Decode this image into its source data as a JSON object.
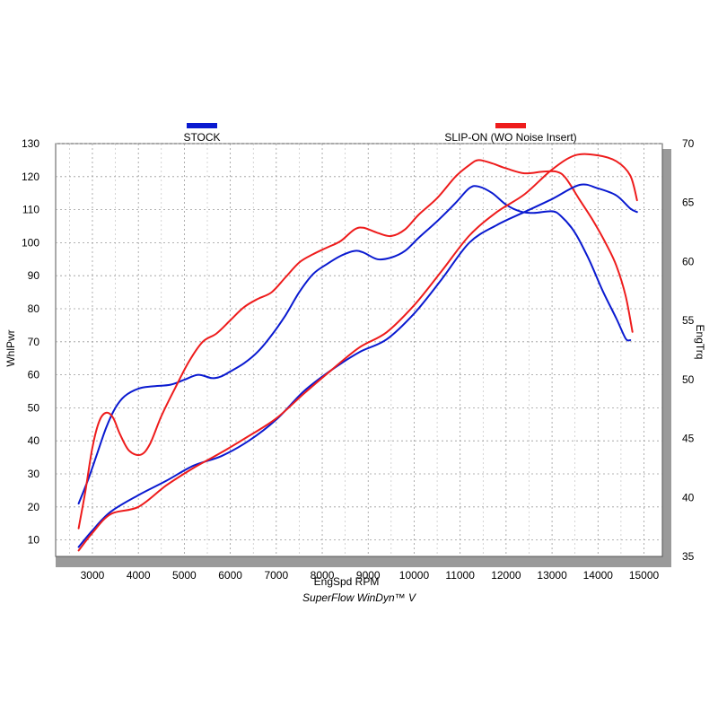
{
  "chart_data": {
    "type": "line",
    "footer": "SuperFlow WinDyn™ V",
    "xlabel": "EngSpd  RPM",
    "ylabel_left": "WhlPwr",
    "ylabel_right": "EngTrq",
    "xlim": [
      2200,
      15400
    ],
    "ylim_left": [
      5,
      130
    ],
    "ylim_right": [
      35,
      70
    ],
    "x_ticks": [
      "3000",
      "4000",
      "5000",
      "6000",
      "7000",
      "8000",
      "9000",
      "10000",
      "11000",
      "12000",
      "13000",
      "14000",
      "15000"
    ],
    "y_left_ticks": [
      "10",
      "20",
      "30",
      "40",
      "50",
      "60",
      "70",
      "80",
      "90",
      "100",
      "110",
      "120",
      "130"
    ],
    "y_right_ticks": [
      "35",
      "40",
      "45",
      "50",
      "55",
      "60",
      "65",
      "70"
    ],
    "grid": true,
    "legend": [
      {
        "name": "STOCK",
        "color": "#0a1ad0"
      },
      {
        "name": "SLIP-ON (WO Noise Insert)",
        "color": "#ee1c1c"
      }
    ],
    "series": [
      {
        "name": "STOCK",
        "measure": "WhlPwr",
        "axis": "left",
        "color": "#0a1ad0",
        "points": [
          [
            2700,
            21
          ],
          [
            2900,
            28
          ],
          [
            3100,
            36
          ],
          [
            3300,
            44
          ],
          [
            3500,
            50
          ],
          [
            3700,
            53.5
          ],
          [
            4000,
            55.8
          ],
          [
            4300,
            56.5
          ],
          [
            4700,
            57
          ],
          [
            5000,
            58.5
          ],
          [
            5300,
            60
          ],
          [
            5600,
            59
          ],
          [
            5800,
            59.5
          ],
          [
            6000,
            61
          ],
          [
            6300,
            63.5
          ],
          [
            6600,
            67
          ],
          [
            6900,
            72
          ],
          [
            7200,
            78
          ],
          [
            7500,
            85
          ],
          [
            7800,
            90.5
          ],
          [
            8100,
            93.5
          ],
          [
            8400,
            96
          ],
          [
            8700,
            97.5
          ],
          [
            8900,
            97
          ],
          [
            9200,
            95
          ],
          [
            9500,
            95.5
          ],
          [
            9800,
            97.5
          ],
          [
            10100,
            101.5
          ],
          [
            10500,
            106.5
          ],
          [
            10900,
            112
          ],
          [
            11200,
            116.5
          ],
          [
            11400,
            117
          ],
          [
            11700,
            115
          ],
          [
            12000,
            111.5
          ],
          [
            12300,
            109.5
          ],
          [
            12600,
            109
          ],
          [
            13000,
            109.5
          ],
          [
            13200,
            108
          ],
          [
            13500,
            103
          ],
          [
            13800,
            95
          ],
          [
            14100,
            85.5
          ],
          [
            14400,
            77
          ],
          [
            14600,
            71
          ],
          [
            14700,
            70.5
          ]
        ]
      },
      {
        "name": "SLIP-ON (WO Noise Insert)",
        "measure": "WhlPwr",
        "axis": "left",
        "color": "#ee1c1c",
        "points": [
          [
            2700,
            13.5
          ],
          [
            2850,
            25
          ],
          [
            3000,
            38
          ],
          [
            3150,
            46
          ],
          [
            3300,
            48.5
          ],
          [
            3450,
            47
          ],
          [
            3600,
            42
          ],
          [
            3800,
            37
          ],
          [
            4050,
            35.8
          ],
          [
            4250,
            39
          ],
          [
            4500,
            47.5
          ],
          [
            4800,
            56
          ],
          [
            5100,
            64
          ],
          [
            5400,
            70
          ],
          [
            5700,
            72.5
          ],
          [
            6000,
            76.5
          ],
          [
            6300,
            80.5
          ],
          [
            6600,
            83
          ],
          [
            6900,
            85
          ],
          [
            7200,
            89.5
          ],
          [
            7500,
            94
          ],
          [
            7800,
            96.5
          ],
          [
            8100,
            98.5
          ],
          [
            8400,
            100.5
          ],
          [
            8700,
            104
          ],
          [
            8900,
            104.5
          ],
          [
            9200,
            103
          ],
          [
            9500,
            102
          ],
          [
            9800,
            104
          ],
          [
            10100,
            108.5
          ],
          [
            10500,
            113.5
          ],
          [
            10900,
            120
          ],
          [
            11200,
            123.5
          ],
          [
            11400,
            125
          ],
          [
            11700,
            124
          ],
          [
            12000,
            122.5
          ],
          [
            12400,
            121
          ],
          [
            12800,
            121.5
          ],
          [
            13100,
            121.5
          ],
          [
            13300,
            119.5
          ],
          [
            13600,
            113
          ],
          [
            13900,
            106.5
          ],
          [
            14200,
            99
          ],
          [
            14400,
            93
          ],
          [
            14600,
            84
          ],
          [
            14750,
            73
          ]
        ]
      },
      {
        "name": "STOCK",
        "measure": "EngTrq",
        "axis": "right",
        "color": "#0a1ad0",
        "points": [
          [
            2700,
            35.8
          ],
          [
            3000,
            37.2
          ],
          [
            3400,
            38.8
          ],
          [
            4000,
            40.2
          ],
          [
            4600,
            41.4
          ],
          [
            5200,
            42.7
          ],
          [
            5800,
            43.5
          ],
          [
            6400,
            44.8
          ],
          [
            7000,
            46.6
          ],
          [
            7600,
            49
          ],
          [
            8200,
            50.8
          ],
          [
            8800,
            52.3
          ],
          [
            9400,
            53.4
          ],
          [
            10000,
            55.6
          ],
          [
            10600,
            58.5
          ],
          [
            11200,
            61.6
          ],
          [
            11800,
            63.1
          ],
          [
            12400,
            64.2
          ],
          [
            13000,
            65.3
          ],
          [
            13600,
            66.5
          ],
          [
            14000,
            66.2
          ],
          [
            14400,
            65.6
          ],
          [
            14700,
            64.5
          ],
          [
            14850,
            64.2
          ]
        ]
      },
      {
        "name": "SLIP-ON (WO Noise Insert)",
        "measure": "EngTrq",
        "axis": "right",
        "color": "#ee1c1c",
        "points": [
          [
            2700,
            35.5
          ],
          [
            3000,
            37
          ],
          [
            3400,
            38.6
          ],
          [
            4000,
            39.2
          ],
          [
            4600,
            41
          ],
          [
            5200,
            42.5
          ],
          [
            5800,
            43.8
          ],
          [
            6400,
            45.2
          ],
          [
            7000,
            46.7
          ],
          [
            7600,
            48.8
          ],
          [
            8200,
            50.8
          ],
          [
            8800,
            52.7
          ],
          [
            9400,
            54
          ],
          [
            10000,
            56.3
          ],
          [
            10600,
            59.2
          ],
          [
            11200,
            62.2
          ],
          [
            11800,
            64.2
          ],
          [
            12400,
            65.7
          ],
          [
            13000,
            67.8
          ],
          [
            13500,
            69
          ],
          [
            14000,
            69
          ],
          [
            14400,
            68.5
          ],
          [
            14700,
            67.3
          ],
          [
            14850,
            65.2
          ]
        ]
      }
    ]
  }
}
